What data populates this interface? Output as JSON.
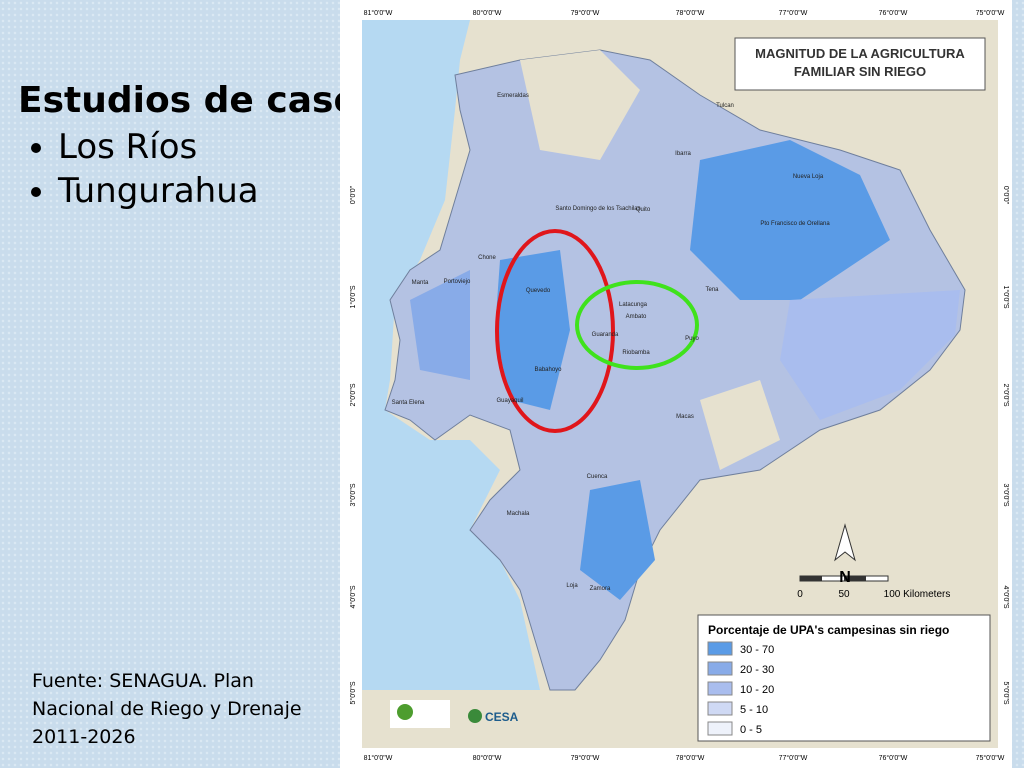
{
  "slide": {
    "title": "Estudios de caso",
    "bullets": [
      "Los Ríos",
      "Tungurahua"
    ],
    "source": "Fuente: SENAGUA. Plan Nacional de Riego y Drenaje 2011-2026"
  },
  "map": {
    "title": [
      "MAGNITUD DE LA AGRICULTURA",
      "FAMILIAR SIN RIEGO"
    ],
    "legend": {
      "title": "Porcentaje de UPA's campesinas sin riego",
      "items": [
        {
          "label": "30 - 70",
          "color": "#5a9be6"
        },
        {
          "label": "20 - 30",
          "color": "#88abe8"
        },
        {
          "label": "10 - 20",
          "color": "#a9bdee"
        },
        {
          "label": "5 - 10",
          "color": "#cfd9f4"
        },
        {
          "label": "0 - 5",
          "color": "#eef2fb"
        }
      ]
    },
    "scale": [
      "0",
      "50",
      "100 Kilometers"
    ],
    "north": "N",
    "longitudes": [
      "81°0'0\"W",
      "80°0'0\"W",
      "79°0'0\"W",
      "78°0'0\"W",
      "77°0'0\"W",
      "76°0'0\"W",
      "75°0'0\"W"
    ],
    "latitudes": [
      "0°0'0\"",
      "1°0'0\"S",
      "2°0'0\"S",
      "3°0'0\"S",
      "4°0'0\"S",
      "5°0'0\"S"
    ],
    "places": [
      "Esmeraldas",
      "Tulcan",
      "Ibarra",
      "Nueva Loja",
      "Santo Domingo de los Tsachilas",
      "Quito",
      "Pto Francisco de Orellana",
      "Chone",
      "Manta",
      "Portoviejo",
      "Quevedo",
      "Latacunga",
      "Ambato",
      "Tena",
      "Puyo",
      "Guaranda",
      "Riobamba",
      "Babahoyo",
      "Guayaquil",
      "Santa Elena",
      "Macas",
      "Cuenca",
      "Machala",
      "Loja",
      "Zamora"
    ],
    "logo": "CESA"
  }
}
